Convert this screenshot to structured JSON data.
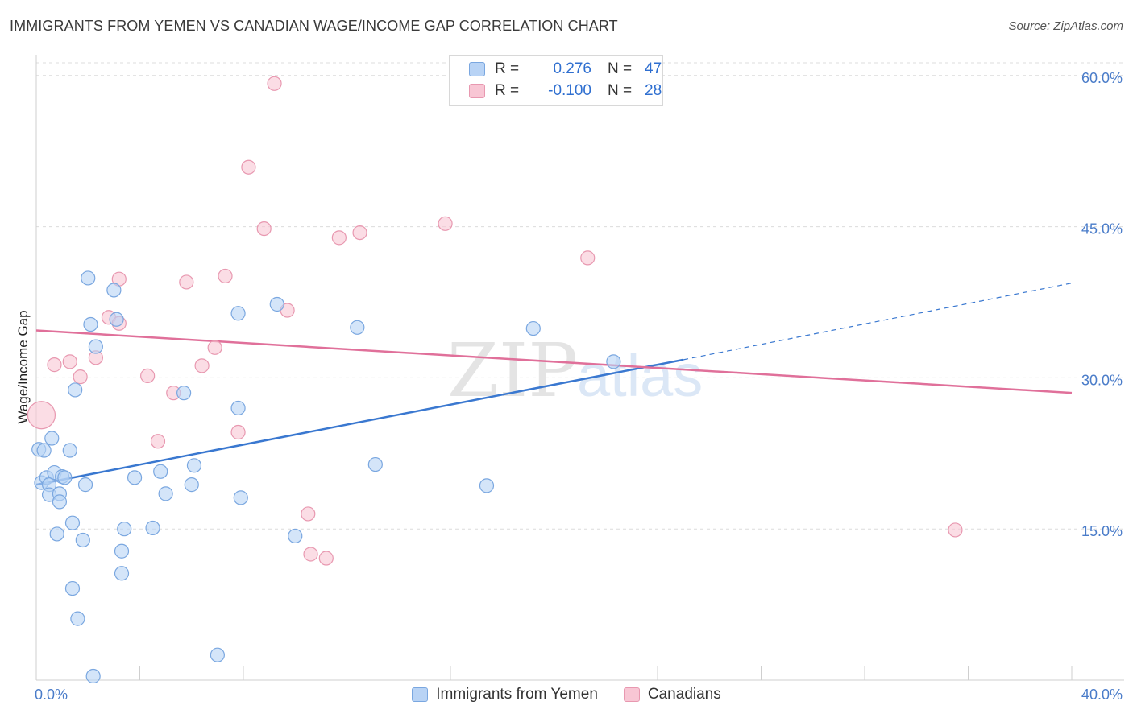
{
  "title": "IMMIGRANTS FROM YEMEN VS CANADIAN WAGE/INCOME GAP CORRELATION CHART",
  "source": "Source: ZipAtlas.com",
  "watermark_zip": "ZIP",
  "watermark_atlas": "atlas",
  "legend": {
    "r_label": "R =",
    "n_label": "N =",
    "rows": [
      {
        "r": "0.276",
        "n": "47"
      },
      {
        "r": "-0.100",
        "n": "28"
      }
    ]
  },
  "chart_data": {
    "type": "scatter",
    "xlabel": "",
    "ylabel": "Wage/Income Gap",
    "xlim": [
      0,
      40
    ],
    "ylim": [
      0,
      61.5
    ],
    "x_tick_labels": [
      "0.0%",
      "40.0%"
    ],
    "y_ticks": [
      15,
      30,
      45,
      60
    ],
    "y_tick_labels": [
      "15.0%",
      "30.0%",
      "45.0%",
      "60.0%"
    ],
    "grid": true,
    "legend_position": "top-center",
    "colors": {
      "blue": "#3a78d0",
      "blue_fill": "#b8d3f5",
      "pink": "#e0709a",
      "pink_fill": "#f8c6d4"
    },
    "series": [
      {
        "name": "Immigrants from Yemen",
        "color": "#3a78d0",
        "points": [
          [
            0.1,
            22.9
          ],
          [
            0.2,
            19.6
          ],
          [
            0.3,
            22.8
          ],
          [
            0.4,
            20.1
          ],
          [
            0.5,
            19.4
          ],
          [
            0.5,
            18.4
          ],
          [
            0.6,
            24.0
          ],
          [
            0.7,
            20.6
          ],
          [
            0.8,
            14.5
          ],
          [
            0.9,
            18.5
          ],
          [
            0.9,
            17.7
          ],
          [
            1.0,
            20.2
          ],
          [
            1.1,
            20.1
          ],
          [
            1.3,
            22.8
          ],
          [
            1.4,
            15.6
          ],
          [
            1.4,
            9.1
          ],
          [
            1.5,
            28.8
          ],
          [
            1.6,
            6.1
          ],
          [
            1.8,
            13.9
          ],
          [
            1.9,
            19.4
          ],
          [
            2.0,
            39.9
          ],
          [
            2.1,
            35.3
          ],
          [
            2.2,
            0.4
          ],
          [
            2.3,
            33.1
          ],
          [
            3.0,
            38.7
          ],
          [
            3.1,
            35.8
          ],
          [
            3.3,
            12.8
          ],
          [
            3.3,
            10.6
          ],
          [
            3.4,
            15.0
          ],
          [
            3.8,
            20.1
          ],
          [
            4.5,
            15.1
          ],
          [
            4.8,
            20.7
          ],
          [
            5.0,
            18.5
          ],
          [
            5.7,
            28.5
          ],
          [
            6.0,
            19.4
          ],
          [
            6.1,
            21.3
          ],
          [
            7.0,
            2.5
          ],
          [
            7.8,
            27.0
          ],
          [
            7.8,
            36.4
          ],
          [
            7.9,
            18.1
          ],
          [
            9.3,
            37.3
          ],
          [
            10.0,
            14.3
          ],
          [
            12.4,
            35.0
          ],
          [
            13.1,
            21.4
          ],
          [
            17.4,
            19.3
          ],
          [
            19.2,
            34.9
          ],
          [
            22.3,
            31.6
          ]
        ]
      },
      {
        "name": "Canadians",
        "color": "#e0709a",
        "points": [
          [
            0.2,
            26.3
          ],
          [
            0.7,
            31.3
          ],
          [
            1.3,
            31.6
          ],
          [
            1.7,
            30.1
          ],
          [
            2.3,
            32.0
          ],
          [
            2.8,
            36.0
          ],
          [
            3.2,
            35.4
          ],
          [
            3.2,
            39.8
          ],
          [
            4.3,
            30.2
          ],
          [
            4.7,
            23.7
          ],
          [
            5.3,
            28.5
          ],
          [
            5.8,
            39.5
          ],
          [
            6.4,
            31.2
          ],
          [
            6.9,
            33.0
          ],
          [
            7.3,
            40.1
          ],
          [
            7.8,
            24.6
          ],
          [
            8.2,
            50.9
          ],
          [
            8.8,
            44.8
          ],
          [
            9.2,
            59.2
          ],
          [
            9.7,
            36.7
          ],
          [
            10.5,
            16.5
          ],
          [
            10.6,
            12.5
          ],
          [
            11.2,
            12.1
          ],
          [
            11.7,
            43.9
          ],
          [
            12.5,
            44.4
          ],
          [
            15.8,
            45.3
          ],
          [
            21.3,
            41.9
          ],
          [
            35.5,
            14.9
          ]
        ]
      }
    ],
    "trend_lines": [
      {
        "name": "Immigrants from Yemen",
        "x0": 0,
        "y0": 19.4,
        "x1": 25.0,
        "y1": 31.8,
        "dashed_to_x": 40,
        "dashed_to_y": 39.4
      },
      {
        "name": "Canadians",
        "x0": 0,
        "y0": 34.7,
        "x1": 40,
        "y1": 28.5
      }
    ]
  }
}
